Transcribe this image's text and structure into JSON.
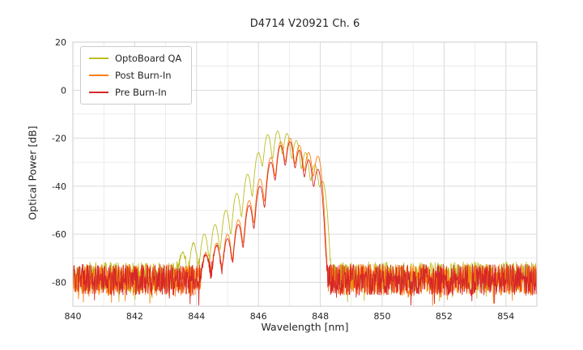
{
  "chart_data": {
    "type": "line",
    "title": "D4714 V20921 Ch. 6",
    "xlabel": "Wavelength [nm]",
    "ylabel": "Optical Power [dB]",
    "xlim": [
      840,
      855
    ],
    "ylim": [
      -90,
      20
    ],
    "xticks": [
      840,
      842,
      844,
      846,
      848,
      850,
      852,
      854
    ],
    "yticks": [
      20,
      0,
      -20,
      -40,
      -60,
      -80
    ],
    "x_minor_step": 1,
    "y_minor_step": 10,
    "grid": true,
    "legend_position": "upper-left",
    "sample_step_nm": 0.01,
    "mode_width_nm": 0.09,
    "series": [
      {
        "name": "OptoBoard QA",
        "color": "#bcbd22",
        "seed": 11,
        "noise_floor_db": -77.5,
        "noise_spread_db": 12,
        "spike_prob": 0.05,
        "spike_depth_db": 7,
        "modes": [
          [
            843.55,
            -68
          ],
          [
            843.9,
            -64
          ],
          [
            844.25,
            -60
          ],
          [
            844.6,
            -56
          ],
          [
            844.95,
            -50
          ],
          [
            845.3,
            -43
          ],
          [
            845.65,
            -35
          ],
          [
            846.0,
            -26
          ],
          [
            846.3,
            -18.5
          ],
          [
            846.62,
            -17
          ],
          [
            846.92,
            -18
          ],
          [
            847.22,
            -21
          ],
          [
            847.52,
            -26
          ],
          [
            847.82,
            -31
          ],
          [
            848.07,
            -38
          ]
        ]
      },
      {
        "name": "Post Burn-In",
        "color": "#ff7f0e",
        "seed": 22,
        "noise_floor_db": -79,
        "noise_spread_db": 13,
        "spike_prob": 0.05,
        "spike_depth_db": 7,
        "modes": [
          [
            844.3,
            -68
          ],
          [
            844.65,
            -64
          ],
          [
            845.0,
            -60
          ],
          [
            845.35,
            -54
          ],
          [
            845.7,
            -46
          ],
          [
            846.05,
            -37
          ],
          [
            846.4,
            -28
          ],
          [
            846.72,
            -21.5
          ],
          [
            847.02,
            -20
          ],
          [
            847.32,
            -23
          ],
          [
            847.62,
            -26
          ],
          [
            847.92,
            -27.5
          ]
        ]
      },
      {
        "name": "Pre Burn-In",
        "color": "#d62728",
        "seed": 33,
        "noise_floor_db": -79,
        "noise_spread_db": 13,
        "spike_prob": 0.05,
        "spike_depth_db": 7,
        "modes": [
          [
            844.3,
            -69
          ],
          [
            844.65,
            -65
          ],
          [
            845.0,
            -62
          ],
          [
            845.35,
            -56
          ],
          [
            845.7,
            -48
          ],
          [
            846.05,
            -40
          ],
          [
            846.4,
            -30
          ],
          [
            846.72,
            -23
          ],
          [
            847.02,
            -21.5
          ],
          [
            847.32,
            -25
          ],
          [
            847.62,
            -29
          ],
          [
            847.92,
            -33
          ]
        ]
      }
    ]
  }
}
